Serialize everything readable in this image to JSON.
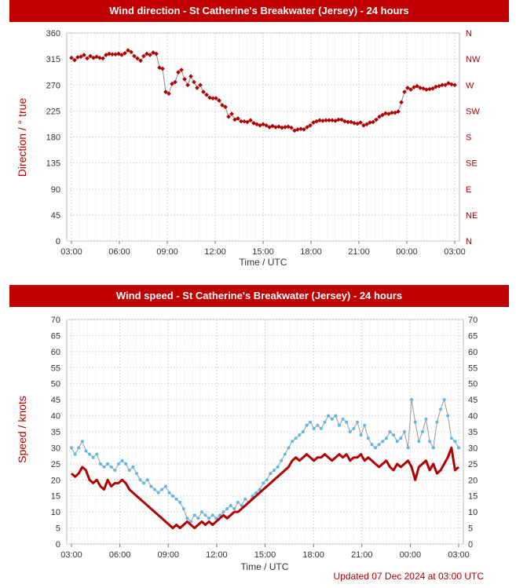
{
  "chart_data": [
    {
      "type": "scatter",
      "title": "Wind direction - St Catherine's Breakwater (Jersey) - 24 hours",
      "xlabel": "Time / UTC",
      "ylabel": "Direction / ° true",
      "ylim": [
        0,
        360
      ],
      "x_ticks": [
        "03:00",
        "06:00",
        "09:00",
        "12:00",
        "15:00",
        "18:00",
        "21:00",
        "00:00",
        "03:00"
      ],
      "y_ticks": [
        0,
        45,
        90,
        135,
        180,
        225,
        270,
        315,
        360
      ],
      "y2_ticks": [
        "N",
        "NE",
        "E",
        "SE",
        "S",
        "SW",
        "W",
        "NW",
        "N"
      ],
      "grid": true,
      "colors": {
        "points": "#b00000",
        "line": "#888888"
      },
      "series": [
        {
          "values": [
            317,
            313,
            318,
            319,
            322,
            316,
            320,
            317,
            319,
            317,
            316,
            322,
            324,
            323,
            323,
            324,
            322,
            325,
            330,
            327,
            320,
            316,
            312,
            320,
            324,
            322,
            326,
            324,
            300,
            298,
            258,
            255,
            272,
            275,
            292,
            296,
            280,
            270,
            285,
            275,
            265,
            270,
            258,
            253,
            248,
            247,
            247,
            243,
            235,
            232,
            215,
            220,
            210,
            212,
            207,
            207,
            206,
            209,
            204,
            202,
            200,
            202,
            200,
            197,
            199,
            197,
            198,
            196,
            197,
            198,
            196,
            191,
            193,
            194,
            193,
            197,
            200,
            205,
            207,
            209,
            208,
            209,
            209,
            209,
            208,
            210,
            210,
            207,
            206,
            206,
            204,
            203,
            205,
            200,
            202,
            205,
            206,
            210,
            215,
            218,
            221,
            220,
            222,
            222,
            224,
            240,
            258,
            265,
            262,
            266,
            268,
            265,
            264,
            262,
            263,
            264,
            267,
            268,
            270,
            270,
            273,
            271,
            270
          ]
        }
      ]
    },
    {
      "type": "line",
      "title": "Wind speed - St Catherine's Breakwater (Jersey) - 24 hours",
      "xlabel": "Time / UTC",
      "ylabel": "Speed / knots",
      "ylim": [
        0,
        70
      ],
      "x_ticks": [
        "03:00",
        "06:00",
        "09:00",
        "12:00",
        "15:00",
        "18:00",
        "21:00",
        "00:00",
        "03:00"
      ],
      "y_ticks": [
        0,
        5,
        10,
        15,
        20,
        25,
        30,
        35,
        40,
        45,
        50,
        55,
        60,
        65,
        70
      ],
      "grid": true,
      "colors": {
        "mean": "#b00000",
        "gust": "#5bb8e8",
        "gust_line": "#999999"
      },
      "series": [
        {
          "values": [
            30,
            28,
            30,
            32,
            29,
            28,
            27,
            28,
            25,
            24,
            25,
            24,
            23,
            25,
            26,
            25,
            23,
            24,
            22,
            20,
            19,
            20,
            18,
            17,
            16,
            17,
            18,
            16,
            15,
            14,
            13,
            11,
            8,
            7,
            9,
            8,
            10,
            9,
            8,
            9,
            8,
            9,
            10,
            11,
            12,
            11,
            13,
            12,
            14,
            13,
            15,
            16,
            17,
            19,
            20,
            22,
            23,
            24,
            26,
            28,
            30,
            32,
            33,
            34,
            35,
            37,
            38,
            36,
            37,
            36,
            38,
            40,
            39,
            40,
            37,
            39,
            38,
            35,
            36,
            38,
            34,
            37,
            33,
            31,
            30,
            31,
            32,
            33,
            35,
            34,
            32,
            33,
            35,
            30,
            45,
            38,
            32,
            35,
            39,
            32,
            30,
            38,
            42,
            45,
            40,
            33,
            32,
            30
          ]
        },
        {
          "values": [
            22,
            21,
            22,
            24,
            23,
            20,
            19,
            20,
            18,
            17,
            20,
            18,
            19,
            19,
            20,
            19,
            17,
            16,
            15,
            14,
            13,
            12,
            11,
            10,
            9,
            8,
            7,
            6,
            5,
            6,
            5,
            6,
            7,
            6,
            5,
            6,
            7,
            6,
            7,
            6,
            7,
            8,
            9,
            8,
            9,
            10,
            10,
            11,
            12,
            13,
            14,
            15,
            16,
            17,
            18,
            19,
            20,
            21,
            22,
            23,
            24,
            26,
            27,
            26,
            27,
            28,
            27,
            26,
            27,
            27,
            28,
            27,
            26,
            27,
            28,
            27,
            28,
            26,
            27,
            27,
            28,
            26,
            27,
            26,
            25,
            24,
            25,
            26,
            24,
            23,
            25,
            24,
            25,
            26,
            24,
            20,
            24,
            25,
            26,
            23,
            25,
            22,
            23,
            25,
            27,
            30,
            23,
            24
          ]
        }
      ]
    }
  ],
  "footer": {
    "updated": "Updated 07 Dec 2024 at 03:00 UTC"
  }
}
